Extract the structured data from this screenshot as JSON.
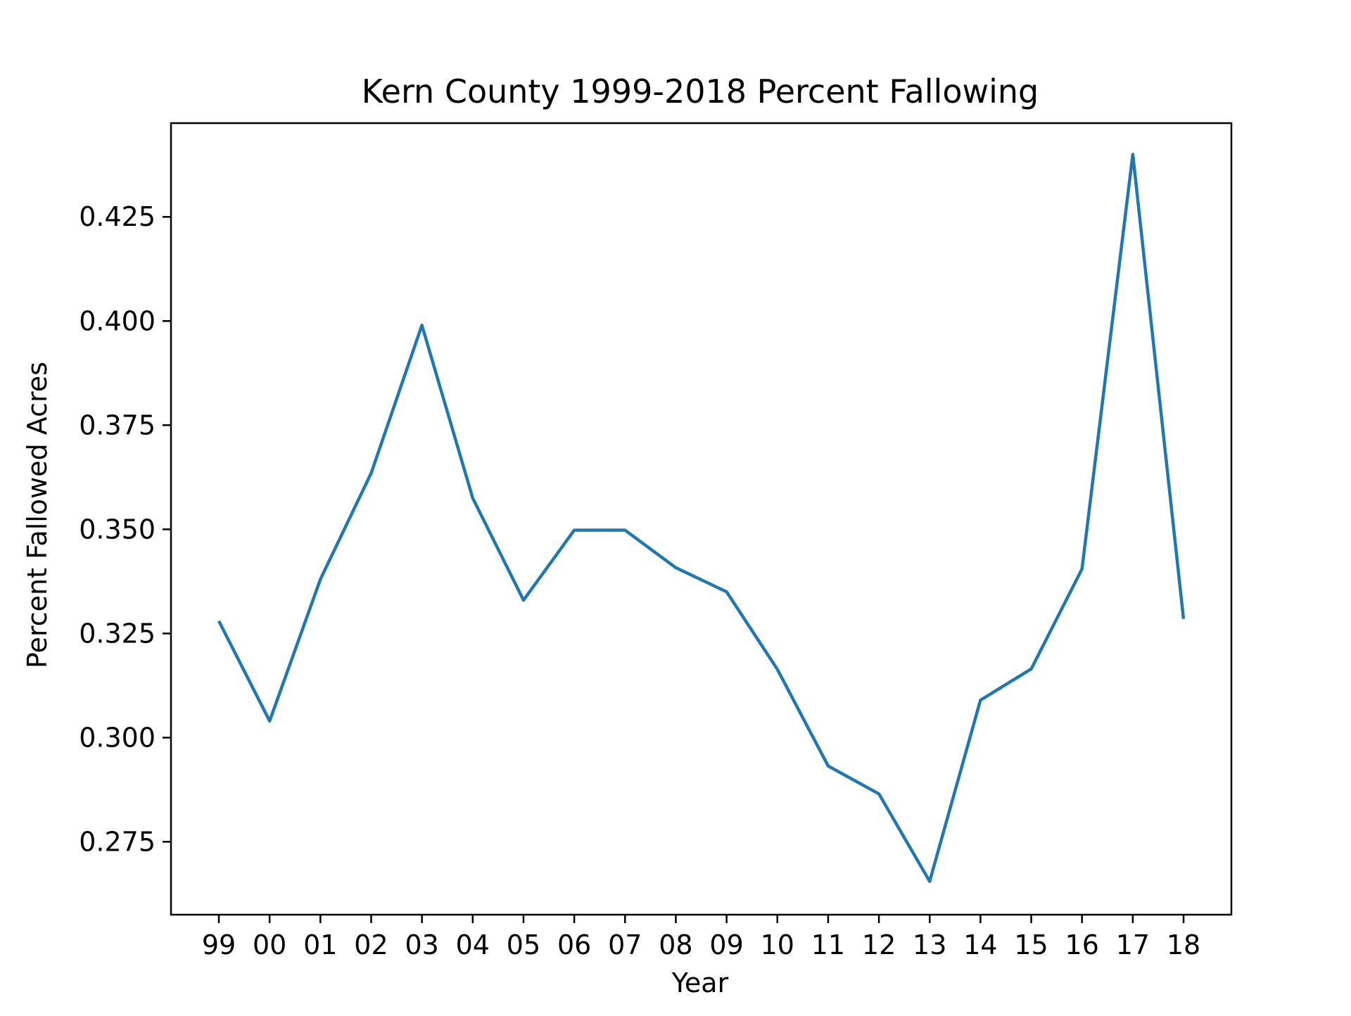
{
  "chart_data": {
    "type": "line",
    "title": "Kern County 1999-2018 Percent Fallowing",
    "xlabel": "Year",
    "ylabel": "Percent Fallowed Acres",
    "categories": [
      "99",
      "00",
      "01",
      "02",
      "03",
      "04",
      "05",
      "06",
      "07",
      "08",
      "09",
      "10",
      "11",
      "12",
      "13",
      "14",
      "15",
      "16",
      "17",
      "18"
    ],
    "series": [
      {
        "values": [
          0.328,
          0.304,
          0.338,
          0.3635,
          0.399,
          0.3575,
          0.333,
          0.3498,
          0.3498,
          0.3408,
          0.335,
          0.3164,
          0.2932,
          0.2865,
          0.2655,
          0.309,
          0.3165,
          0.3405,
          0.44,
          0.3285
        ],
        "color": "#1f77b4"
      }
    ],
    "ylim": [
      0.2575,
      0.4475
    ],
    "yticks": [
      0.275,
      0.3,
      0.325,
      0.35,
      0.375,
      0.4,
      0.425
    ],
    "ytick_labels": [
      "0.275",
      "0.300",
      "0.325",
      "0.350",
      "0.375",
      "0.400",
      "0.425"
    ],
    "grid": false,
    "legend": "none"
  }
}
